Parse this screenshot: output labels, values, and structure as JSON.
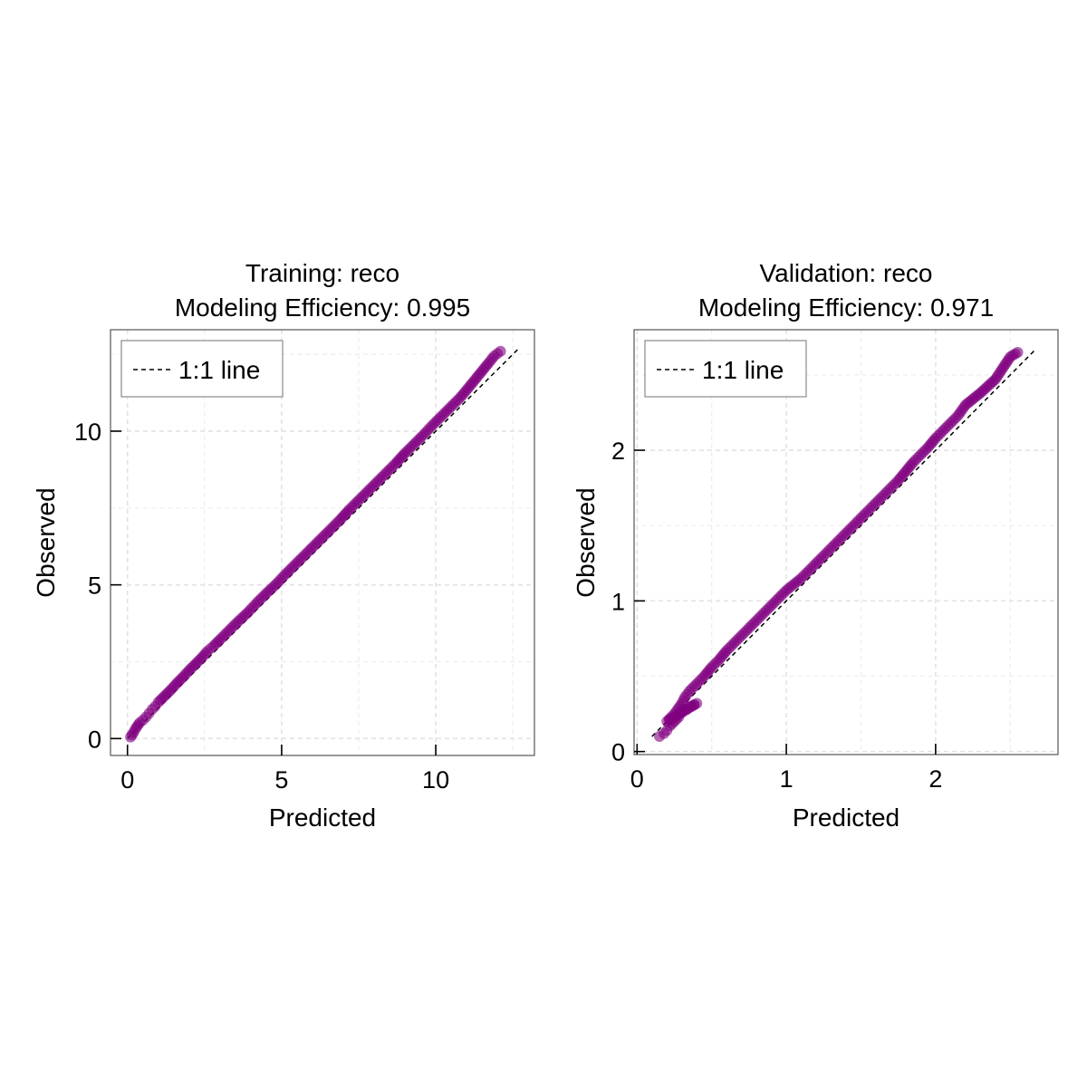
{
  "chart_data": [
    {
      "type": "scatter",
      "title": "Training: reco",
      "subtitle": "Modeling Efficiency: 0.995",
      "xlabel": "Predicted",
      "ylabel": "Observed",
      "xlim": [
        -0.55,
        13.2
      ],
      "ylim": [
        -0.55,
        13.3
      ],
      "xticks": [
        0,
        5,
        10
      ],
      "yticks": [
        0,
        5,
        10
      ],
      "grid": true,
      "legend": {
        "position": "top-left",
        "entries": [
          {
            "label": "1:1 line",
            "style": "dashed",
            "color": "#000000"
          }
        ]
      },
      "reference_line": {
        "from": [
          0,
          0
        ],
        "to": [
          12.65,
          12.65
        ]
      },
      "series": [
        {
          "color": "#800080",
          "points": [
            [
              0.1,
              0.05
            ],
            [
              0.15,
              0.12
            ],
            [
              0.2,
              0.2
            ],
            [
              0.25,
              0.3
            ],
            [
              0.3,
              0.38
            ],
            [
              0.35,
              0.45
            ],
            [
              0.4,
              0.52
            ],
            [
              0.5,
              0.6
            ],
            [
              0.6,
              0.7
            ],
            [
              0.7,
              0.82
            ],
            [
              0.8,
              0.95
            ],
            [
              0.9,
              1.05
            ],
            [
              1.0,
              1.18
            ],
            [
              1.2,
              1.38
            ],
            [
              1.4,
              1.58
            ],
            [
              1.6,
              1.8
            ],
            [
              1.8,
              2.0
            ],
            [
              2.0,
              2.22
            ],
            [
              2.2,
              2.42
            ],
            [
              2.4,
              2.62
            ],
            [
              2.6,
              2.85
            ],
            [
              2.8,
              3.02
            ],
            [
              3.0,
              3.22
            ],
            [
              3.3,
              3.52
            ],
            [
              3.6,
              3.82
            ],
            [
              3.9,
              4.1
            ],
            [
              4.2,
              4.42
            ],
            [
              4.5,
              4.72
            ],
            [
              4.8,
              5.0
            ],
            [
              5.1,
              5.32
            ],
            [
              5.4,
              5.62
            ],
            [
              5.7,
              5.92
            ],
            [
              6.0,
              6.22
            ],
            [
              6.3,
              6.52
            ],
            [
              6.6,
              6.82
            ],
            [
              6.9,
              7.12
            ],
            [
              7.2,
              7.45
            ],
            [
              7.5,
              7.75
            ],
            [
              7.8,
              8.05
            ],
            [
              8.1,
              8.35
            ],
            [
              8.4,
              8.65
            ],
            [
              8.7,
              8.95
            ],
            [
              9.0,
              9.28
            ],
            [
              9.3,
              9.58
            ],
            [
              9.6,
              9.88
            ],
            [
              9.9,
              10.2
            ],
            [
              10.2,
              10.5
            ],
            [
              10.5,
              10.8
            ],
            [
              10.8,
              11.1
            ],
            [
              11.05,
              11.4
            ],
            [
              11.7,
              12.2
            ],
            [
              11.9,
              12.45
            ],
            [
              12.1,
              12.6
            ]
          ]
        }
      ]
    },
    {
      "type": "scatter",
      "title": "Validation: reco",
      "subtitle": "Modeling Efficiency: 0.971",
      "xlabel": "Predicted",
      "ylabel": "Observed",
      "xlim": [
        -0.02,
        2.82
      ],
      "ylim": [
        -0.02,
        2.8
      ],
      "xticks": [
        0,
        1,
        2
      ],
      "yticks": [
        0,
        1,
        2
      ],
      "grid": true,
      "legend": {
        "position": "top-left",
        "entries": [
          {
            "label": "1:1 line",
            "style": "dashed",
            "color": "#000000"
          }
        ]
      },
      "reference_line": {
        "from": [
          0.1,
          0.1
        ],
        "to": [
          2.66,
          2.66
        ]
      },
      "series": [
        {
          "color": "#800080",
          "points": [
            [
              0.15,
              0.1
            ],
            [
              0.18,
              0.12
            ],
            [
              0.2,
              0.14
            ],
            [
              0.22,
              0.17
            ],
            [
              0.25,
              0.2
            ],
            [
              0.28,
              0.23
            ],
            [
              0.3,
              0.26
            ],
            [
              0.33,
              0.28
            ],
            [
              0.36,
              0.3
            ],
            [
              0.4,
              0.32
            ],
            [
              0.2,
              0.2
            ],
            [
              0.25,
              0.25
            ],
            [
              0.3,
              0.32
            ],
            [
              0.32,
              0.36
            ],
            [
              0.35,
              0.4
            ],
            [
              0.4,
              0.45
            ],
            [
              0.45,
              0.5
            ],
            [
              0.5,
              0.56
            ],
            [
              0.55,
              0.61
            ],
            [
              0.6,
              0.67
            ],
            [
              0.65,
              0.72
            ],
            [
              0.7,
              0.77
            ],
            [
              0.75,
              0.82
            ],
            [
              0.8,
              0.87
            ],
            [
              0.85,
              0.92
            ],
            [
              0.9,
              0.97
            ],
            [
              0.95,
              1.02
            ],
            [
              1.0,
              1.07
            ],
            [
              1.05,
              1.11
            ],
            [
              1.1,
              1.15
            ],
            [
              1.15,
              1.2
            ],
            [
              1.2,
              1.25
            ],
            [
              1.25,
              1.3
            ],
            [
              1.3,
              1.35
            ],
            [
              1.35,
              1.4
            ],
            [
              1.4,
              1.45
            ],
            [
              1.45,
              1.5
            ],
            [
              1.5,
              1.55
            ],
            [
              1.55,
              1.6
            ],
            [
              1.6,
              1.65
            ],
            [
              1.65,
              1.7
            ],
            [
              1.7,
              1.75
            ],
            [
              1.75,
              1.8
            ],
            [
              1.8,
              1.86
            ],
            [
              1.85,
              1.92
            ],
            [
              1.9,
              1.97
            ],
            [
              1.95,
              2.02
            ],
            [
              2.0,
              2.08
            ],
            [
              2.05,
              2.13
            ],
            [
              2.1,
              2.18
            ],
            [
              2.15,
              2.23
            ],
            [
              2.2,
              2.3
            ],
            [
              2.3,
              2.38
            ],
            [
              2.4,
              2.47
            ],
            [
              2.5,
              2.62
            ],
            [
              2.55,
              2.65
            ]
          ]
        }
      ]
    }
  ]
}
